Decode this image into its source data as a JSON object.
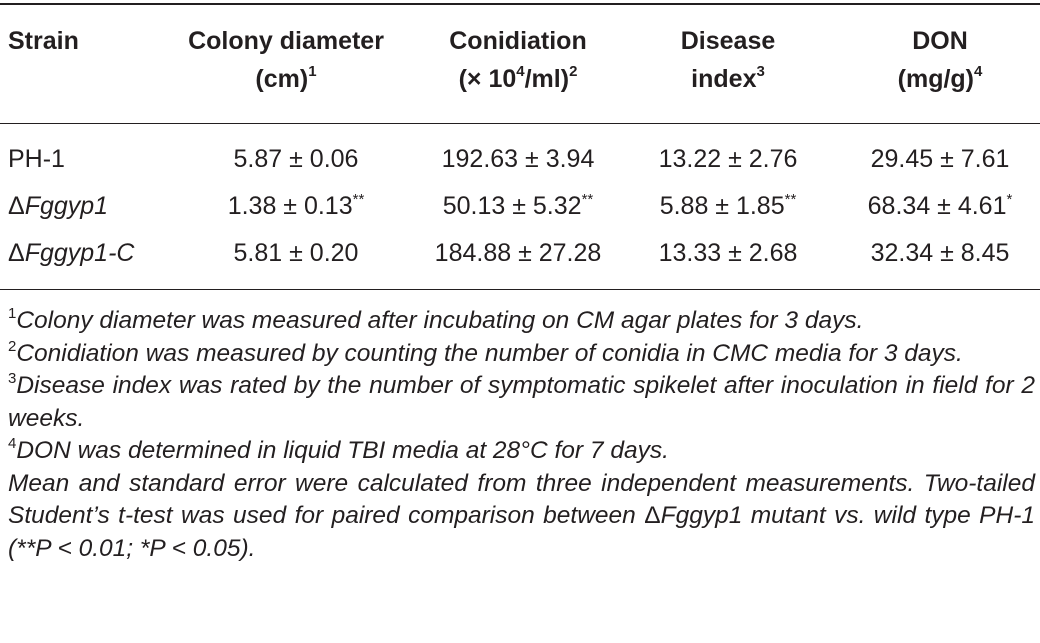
{
  "table": {
    "headers": {
      "strain": "Strain",
      "colony": {
        "line1": "Colony diameter",
        "line2": "(cm)",
        "sup": "1"
      },
      "conidiation": {
        "line1": "Conidiation",
        "line2_pre": "(× 10",
        "line2_exp": "4",
        "line2_post": "/ml)",
        "sup": "2"
      },
      "disease": {
        "line1": "Disease",
        "line2": "index",
        "sup": "3"
      },
      "don": {
        "line1": "DON",
        "line2": "(mg/g)",
        "sup": "4"
      }
    },
    "rows": [
      {
        "delta": "",
        "strain": "PH-1",
        "colony": "5.87 ± 0.06",
        "colony_sig": "",
        "conidiation": "192.63 ± 3.94",
        "conidiation_sig": "",
        "disease": "13.22 ± 2.76",
        "disease_sig": "",
        "don": "29.45 ± 7.61",
        "don_sig": ""
      },
      {
        "delta": "Δ",
        "strain": "Fggyp1",
        "colony": "1.38 ± 0.13",
        "colony_sig": "**",
        "conidiation": "50.13 ± 5.32",
        "conidiation_sig": "**",
        "disease": "5.88 ± 1.85",
        "disease_sig": "**",
        "don": "68.34 ± 4.61",
        "don_sig": "*"
      },
      {
        "delta": "Δ",
        "strain": "Fggyp1-C",
        "colony": "5.81 ± 0.20",
        "colony_sig": "",
        "conidiation": "184.88 ± 27.28",
        "conidiation_sig": "",
        "disease": "13.33 ± 2.68",
        "disease_sig": "",
        "don": "32.34 ± 8.45",
        "don_sig": ""
      }
    ]
  },
  "footnotes": [
    {
      "sup": "1",
      "text": "Colony diameter was measured after incubating on CM agar plates for 3 days."
    },
    {
      "sup": "2",
      "text": "Conidiation was measured by counting the number of conidia in CMC media for 3 days."
    },
    {
      "sup": "3",
      "text": "Disease index was rated by the number of symptomatic spikelet after inoculation in field for 2 weeks."
    },
    {
      "sup": "4",
      "text": "DON was determined in liquid TBI media at 28°C for 7 days."
    }
  ],
  "stats_note": {
    "line1": "Mean and standard error were calculated from three independent measurements.",
    "line2_pre": "Two-tailed Student’s t-test was used for paired comparison between ",
    "line2_delta": "Δ",
    "line2_strain": "Fggyp1",
    "line2_post": " mutant vs. wild type PH-1 (**P < 0.01; *P < 0.05)."
  }
}
